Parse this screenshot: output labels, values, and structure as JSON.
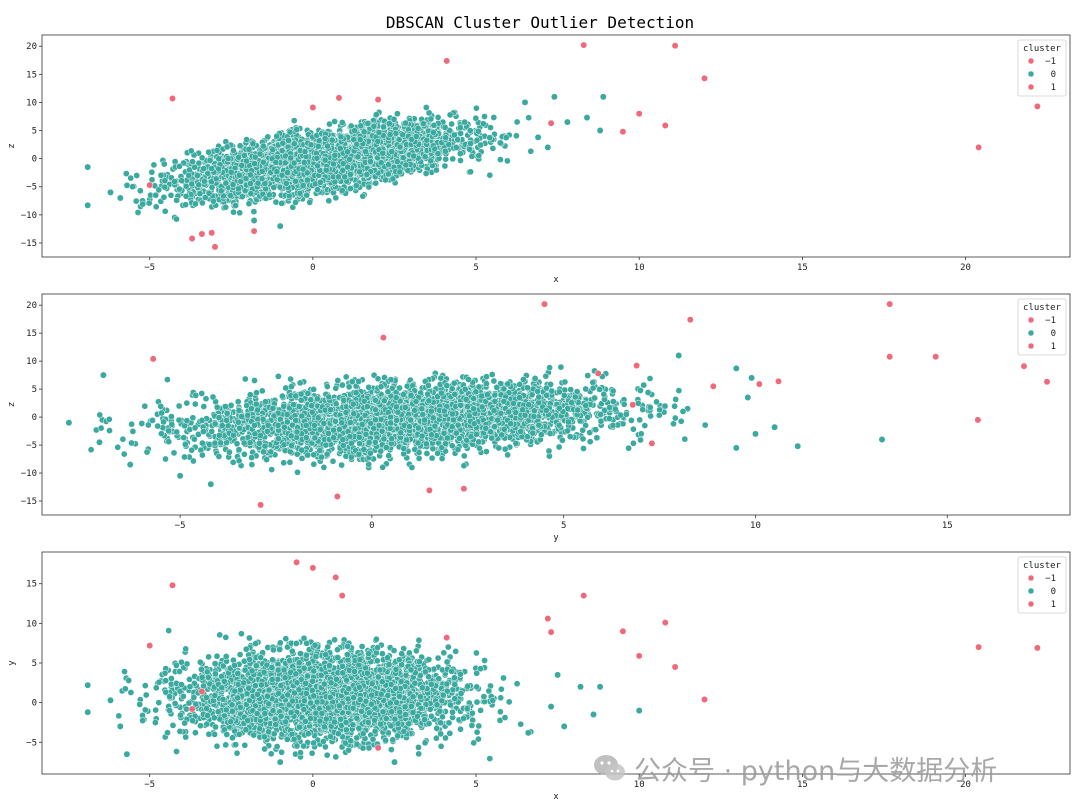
{
  "chart_data": {
    "type": "scatter",
    "title": "DBSCAN Cluster Outlier Detection",
    "colors": {
      "-1": "#f0697b",
      "0": "#3aa99f",
      "1": "#f0697b"
    },
    "legend": {
      "title": "cluster",
      "entries": [
        "−1",
        "0",
        "1"
      ],
      "placement": "top-right"
    },
    "panels": [
      {
        "xlabel": "x",
        "ylabel": "z",
        "xlim": [
          -8.3,
          23.2
        ],
        "ylim": [
          -17.5,
          22
        ],
        "xticks": [
          -5,
          0,
          5,
          10,
          15,
          20
        ],
        "yticks": [
          -15,
          -10,
          -5,
          0,
          5,
          10,
          15,
          20
        ],
        "main_cluster": {
          "cluster": 0,
          "approx_count": 4000,
          "center": [
            0.3,
            -0.3
          ],
          "spread": [
            2.0,
            3.0
          ],
          "corr": 0.6
        },
        "points": [
          {
            "x": -6.9,
            "y": -8.3,
            "c": 0
          },
          {
            "x": -6.9,
            "y": -1.5,
            "c": 0
          },
          {
            "x": -6.2,
            "y": -6.0,
            "c": 0
          },
          {
            "x": -5.9,
            "y": -7.0,
            "c": 0
          },
          {
            "x": 6.5,
            "y": 10.0,
            "c": 0
          },
          {
            "x": 7.4,
            "y": 11.0,
            "c": 0
          },
          {
            "x": 8.9,
            "y": 11.0,
            "c": 0
          },
          {
            "x": 7.8,
            "y": 6.5,
            "c": 0
          },
          {
            "x": 8.4,
            "y": 7.3,
            "c": 0
          },
          {
            "x": 8.8,
            "y": 5.0,
            "c": 0
          },
          {
            "x": 6.9,
            "y": 3.8,
            "c": 0
          },
          {
            "x": 7.2,
            "y": 2.0,
            "c": 0
          },
          {
            "x": -1.0,
            "y": -12.0,
            "c": 0
          },
          {
            "x": -1.8,
            "y": -11.0,
            "c": 0
          },
          {
            "x": -4.3,
            "y": 10.7,
            "c": -1
          },
          {
            "x": -5.0,
            "y": -4.7,
            "c": -1
          },
          {
            "x": -3.7,
            "y": -14.2,
            "c": -1
          },
          {
            "x": -3.4,
            "y": -13.4,
            "c": -1
          },
          {
            "x": -3.1,
            "y": -13.2,
            "c": -1
          },
          {
            "x": -3.0,
            "y": -15.7,
            "c": -1
          },
          {
            "x": -1.8,
            "y": -12.9,
            "c": -1
          },
          {
            "x": 0.0,
            "y": 9.1,
            "c": -1
          },
          {
            "x": 0.8,
            "y": 10.8,
            "c": -1
          },
          {
            "x": 2.0,
            "y": 10.5,
            "c": -1
          },
          {
            "x": 4.1,
            "y": 17.4,
            "c": -1
          },
          {
            "x": 8.3,
            "y": 20.2,
            "c": -1
          },
          {
            "x": 11.1,
            "y": 20.1,
            "c": -1
          },
          {
            "x": 12.0,
            "y": 14.3,
            "c": -1
          },
          {
            "x": 10.0,
            "y": 8.0,
            "c": -1
          },
          {
            "x": 9.5,
            "y": 4.8,
            "c": -1
          },
          {
            "x": 10.8,
            "y": 5.9,
            "c": -1
          },
          {
            "x": 7.3,
            "y": 6.3,
            "c": -1
          },
          {
            "x": 20.4,
            "y": 2.0,
            "c": -1
          },
          {
            "x": 22.2,
            "y": 9.3,
            "c": -1
          }
        ]
      },
      {
        "xlabel": "y",
        "ylabel": "z",
        "xlim": [
          -8.6,
          18.2
        ],
        "ylim": [
          -17.5,
          22
        ],
        "xticks": [
          -5,
          0,
          5,
          10,
          15
        ],
        "yticks": [
          -15,
          -10,
          -5,
          0,
          5,
          10,
          15,
          20
        ],
        "main_cluster": {
          "cluster": 0,
          "approx_count": 4000,
          "center": [
            0.8,
            -0.3
          ],
          "spread": [
            2.6,
            3.0
          ],
          "corr": 0.3
        },
        "points": [
          {
            "x": -7.9,
            "y": -1.0,
            "c": 0
          },
          {
            "x": -7.0,
            "y": 7.5,
            "c": 0
          },
          {
            "x": -7.1,
            "y": -4.5,
            "c": 0
          },
          {
            "x": -6.3,
            "y": -8.5,
            "c": 0
          },
          {
            "x": -5.0,
            "y": -10.5,
            "c": 0
          },
          {
            "x": -4.2,
            "y": -12.0,
            "c": 0
          },
          {
            "x": 8.0,
            "y": 11.0,
            "c": 0
          },
          {
            "x": 9.5,
            "y": 8.7,
            "c": 0
          },
          {
            "x": 9.9,
            "y": 7.0,
            "c": 0
          },
          {
            "x": 9.5,
            "y": -5.5,
            "c": 0
          },
          {
            "x": 10.0,
            "y": -3.0,
            "c": 0
          },
          {
            "x": 10.5,
            "y": -1.8,
            "c": 0
          },
          {
            "x": 11.1,
            "y": -5.2,
            "c": 0
          },
          {
            "x": 13.3,
            "y": -4.0,
            "c": 0
          },
          {
            "x": 9.8,
            "y": 3.5,
            "c": 0
          },
          {
            "x": -5.7,
            "y": 10.4,
            "c": -1
          },
          {
            "x": 0.3,
            "y": 14.2,
            "c": -1
          },
          {
            "x": 4.5,
            "y": 20.2,
            "c": -1
          },
          {
            "x": 8.3,
            "y": 17.4,
            "c": -1
          },
          {
            "x": 13.5,
            "y": 20.2,
            "c": -1
          },
          {
            "x": 13.5,
            "y": 10.8,
            "c": -1
          },
          {
            "x": 14.7,
            "y": 10.8,
            "c": -1
          },
          {
            "x": 17.0,
            "y": 9.1,
            "c": -1
          },
          {
            "x": 17.6,
            "y": 6.3,
            "c": -1
          },
          {
            "x": 15.8,
            "y": -0.5,
            "c": -1
          },
          {
            "x": 10.1,
            "y": 5.9,
            "c": -1
          },
          {
            "x": 10.6,
            "y": 6.4,
            "c": -1
          },
          {
            "x": 6.9,
            "y": 9.2,
            "c": -1
          },
          {
            "x": 8.9,
            "y": 5.5,
            "c": -1
          },
          {
            "x": 5.9,
            "y": 7.8,
            "c": -1
          },
          {
            "x": 7.3,
            "y": -4.7,
            "c": -1
          },
          {
            "x": 6.8,
            "y": 2.2,
            "c": -1
          },
          {
            "x": -2.9,
            "y": -15.7,
            "c": -1
          },
          {
            "x": -0.9,
            "y": -14.2,
            "c": -1
          },
          {
            "x": 1.5,
            "y": -13.1,
            "c": -1
          },
          {
            "x": 2.4,
            "y": -12.8,
            "c": -1
          }
        ]
      },
      {
        "xlabel": "x",
        "ylabel": "y",
        "xlim": [
          -8.3,
          23.2
        ],
        "ylim": [
          -9,
          19
        ],
        "xticks": [
          -5,
          0,
          5,
          10,
          15,
          20
        ],
        "yticks": [
          -5,
          0,
          5,
          10,
          15
        ],
        "main_cluster": {
          "cluster": 0,
          "approx_count": 4000,
          "center": [
            0.3,
            0.8
          ],
          "spread": [
            2.0,
            2.6
          ],
          "corr": 0.0
        },
        "points": [
          {
            "x": -6.9,
            "y": 2.2,
            "c": 0
          },
          {
            "x": -6.9,
            "y": -1.2,
            "c": 0
          },
          {
            "x": -6.2,
            "y": 0.3,
            "c": 0
          },
          {
            "x": -5.7,
            "y": -6.5,
            "c": 0
          },
          {
            "x": -5.9,
            "y": -3.0,
            "c": 0
          },
          {
            "x": 7.5,
            "y": 3.5,
            "c": 0
          },
          {
            "x": 8.2,
            "y": 2.0,
            "c": 0
          },
          {
            "x": 8.8,
            "y": 2.0,
            "c": 0
          },
          {
            "x": 8.6,
            "y": -1.5,
            "c": 0
          },
          {
            "x": 10.0,
            "y": -1.0,
            "c": 0
          },
          {
            "x": 7.7,
            "y": -3.0,
            "c": 0
          },
          {
            "x": 6.6,
            "y": -3.8,
            "c": 0
          },
          {
            "x": 7.3,
            "y": -0.5,
            "c": 0
          },
          {
            "x": -1.0,
            "y": -7.5,
            "c": 0
          },
          {
            "x": 2.5,
            "y": -7.5,
            "c": 0
          },
          {
            "x": -4.3,
            "y": 14.8,
            "c": -1
          },
          {
            "x": -5.0,
            "y": 7.2,
            "c": -1
          },
          {
            "x": -0.5,
            "y": 17.7,
            "c": -1
          },
          {
            "x": 0.0,
            "y": 17.0,
            "c": -1
          },
          {
            "x": 0.7,
            "y": 15.8,
            "c": -1
          },
          {
            "x": 0.9,
            "y": 13.5,
            "c": -1
          },
          {
            "x": 4.1,
            "y": 8.2,
            "c": -1
          },
          {
            "x": 7.2,
            "y": 10.6,
            "c": -1
          },
          {
            "x": 7.3,
            "y": 8.9,
            "c": -1
          },
          {
            "x": 8.3,
            "y": 13.5,
            "c": -1
          },
          {
            "x": 9.5,
            "y": 9.0,
            "c": -1
          },
          {
            "x": 10.0,
            "y": 5.9,
            "c": -1
          },
          {
            "x": 10.8,
            "y": 10.1,
            "c": -1
          },
          {
            "x": 11.1,
            "y": 4.5,
            "c": -1
          },
          {
            "x": 12.0,
            "y": 0.4,
            "c": -1
          },
          {
            "x": 20.4,
            "y": 7.0,
            "c": -1
          },
          {
            "x": 22.2,
            "y": 6.9,
            "c": -1
          },
          {
            "x": -3.7,
            "y": -0.8,
            "c": -1
          },
          {
            "x": -3.4,
            "y": 1.4,
            "c": -1
          },
          {
            "x": 2.0,
            "y": -5.7,
            "c": -1
          }
        ]
      }
    ]
  },
  "watermark": {
    "icon": "wechat-icon",
    "text": "公众号 · python与大数据分析"
  }
}
